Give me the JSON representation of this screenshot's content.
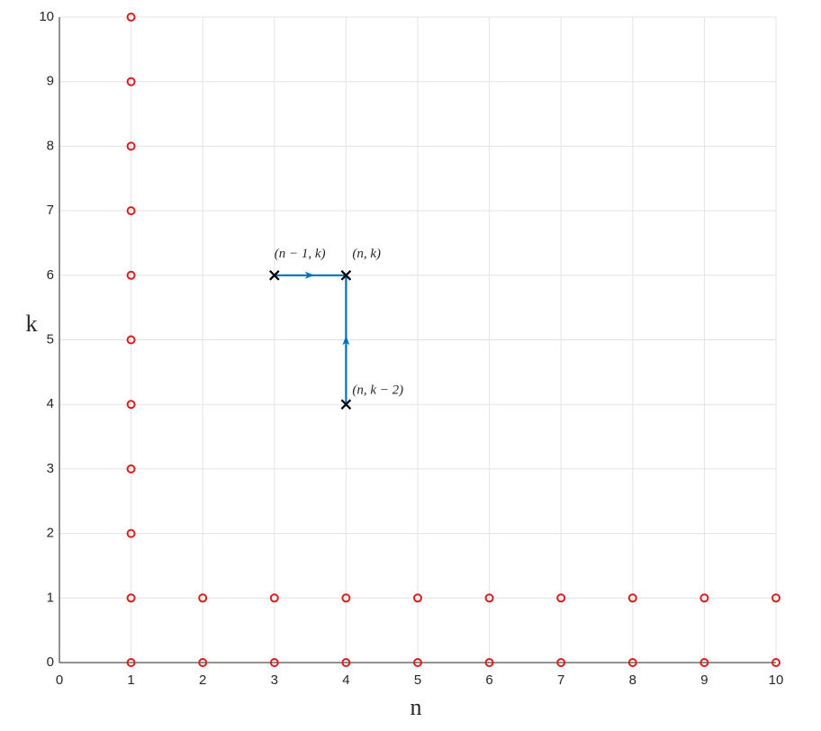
{
  "chart_data": {
    "type": "scatter",
    "xlabel": "n",
    "ylabel": "k",
    "xlim": [
      0,
      10
    ],
    "ylim": [
      0,
      10
    ],
    "xticks": [
      0,
      1,
      2,
      3,
      4,
      5,
      6,
      7,
      8,
      9,
      10
    ],
    "yticks": [
      0,
      1,
      2,
      3,
      4,
      5,
      6,
      7,
      8,
      9,
      10
    ],
    "grid": true,
    "series": [
      {
        "color": "#d62020",
        "marker": "o",
        "x": [
          1,
          1,
          1,
          1,
          1,
          1,
          1,
          1,
          1,
          1,
          1,
          2,
          3,
          4,
          5,
          6,
          7,
          8,
          9,
          10,
          2,
          3,
          4,
          5,
          6,
          7,
          8,
          9,
          10
        ],
        "y": [
          0,
          1,
          2,
          3,
          4,
          5,
          6,
          7,
          8,
          9,
          10,
          1,
          1,
          1,
          1,
          1,
          1,
          1,
          1,
          1,
          0,
          0,
          0,
          0,
          0,
          0,
          0,
          0,
          0
        ]
      },
      {
        "color": "#000000",
        "marker": "x",
        "x": [
          3,
          4,
          4
        ],
        "y": [
          6,
          6,
          4
        ]
      }
    ],
    "arrows": {
      "color": "#0072bd",
      "x": [
        [
          3,
          4
        ],
        [
          4,
          4
        ]
      ],
      "y": [
        [
          6,
          6
        ],
        [
          4,
          6
        ]
      ]
    },
    "annotations": [
      {
        "text": "(n − 1, k)",
        "x": 3,
        "y": 6
      },
      {
        "text": "(n, k)",
        "x": 4,
        "y": 6
      },
      {
        "text": "(n, k − 2)",
        "x": 4,
        "y": 4
      }
    ]
  }
}
